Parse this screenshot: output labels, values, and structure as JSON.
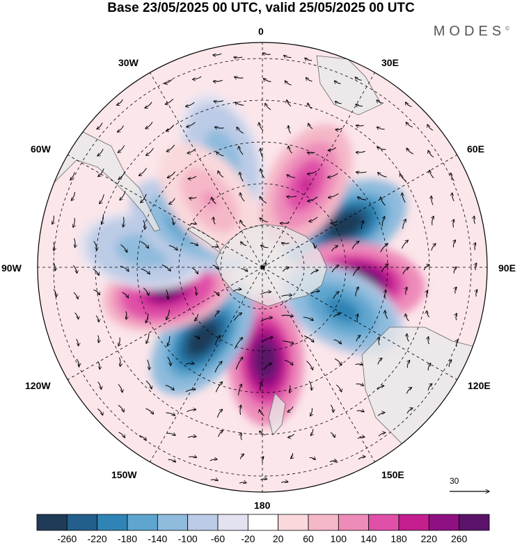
{
  "title": "Base 23/05/2025 00 UTC, valid 25/05/2025 00 UTC",
  "brand": "MODES",
  "brand_mark": "©",
  "longitude_labels": {
    "lon_0": "0",
    "lon_30e": "30E",
    "lon_60e": "60E",
    "lon_90e": "90E",
    "lon_120e": "120E",
    "lon_150e": "150E",
    "lon_180": "180",
    "lon_150w": "150W",
    "lon_120w": "120W",
    "lon_90w": "90W",
    "lon_60w": "60W",
    "lon_30w": "30W"
  },
  "reference_vector": {
    "value": "30"
  },
  "colorbar": {
    "colors": [
      "#1f3b57",
      "#225f8a",
      "#2f84b5",
      "#5ea6cf",
      "#8fbbdd",
      "#bccbe6",
      "#e2e2f0",
      "#ffffff",
      "#f9d9dc",
      "#f5b8c8",
      "#ee8cb9",
      "#e04fa8",
      "#c41e8f",
      "#8f1083",
      "#5a1369"
    ],
    "labels": [
      "-260",
      "-220",
      "-180",
      "-140",
      "-100",
      "-60",
      "-20",
      "20",
      "60",
      "100",
      "140",
      "180",
      "220",
      "260"
    ]
  },
  "anomaly_features": [
    {
      "sign": "negative",
      "level": -300,
      "lon": 63,
      "lat": -52
    },
    {
      "sign": "positive",
      "level": 300,
      "lon": 98,
      "lat": -50
    },
    {
      "sign": "negative",
      "level": -220,
      "lon": 118,
      "lat": -53
    },
    {
      "sign": "positive",
      "level": 300,
      "lon": 178,
      "lat": -52
    },
    {
      "sign": "negative",
      "level": -300,
      "lon": -140,
      "lat": -52
    },
    {
      "sign": "positive",
      "level": 260,
      "lon": -104,
      "lat": -50
    },
    {
      "sign": "negative",
      "level": -140,
      "lon": -82,
      "lat": -41
    },
    {
      "sign": "negative",
      "level": -180,
      "lon": -60,
      "lat": -56
    },
    {
      "sign": "positive",
      "level": 180,
      "lon": 28,
      "lat": -52
    },
    {
      "sign": "negative",
      "level": -140,
      "lon": -20,
      "lat": -42
    },
    {
      "sign": "positive",
      "level": 100,
      "lon": -38,
      "lat": -55
    }
  ]
}
